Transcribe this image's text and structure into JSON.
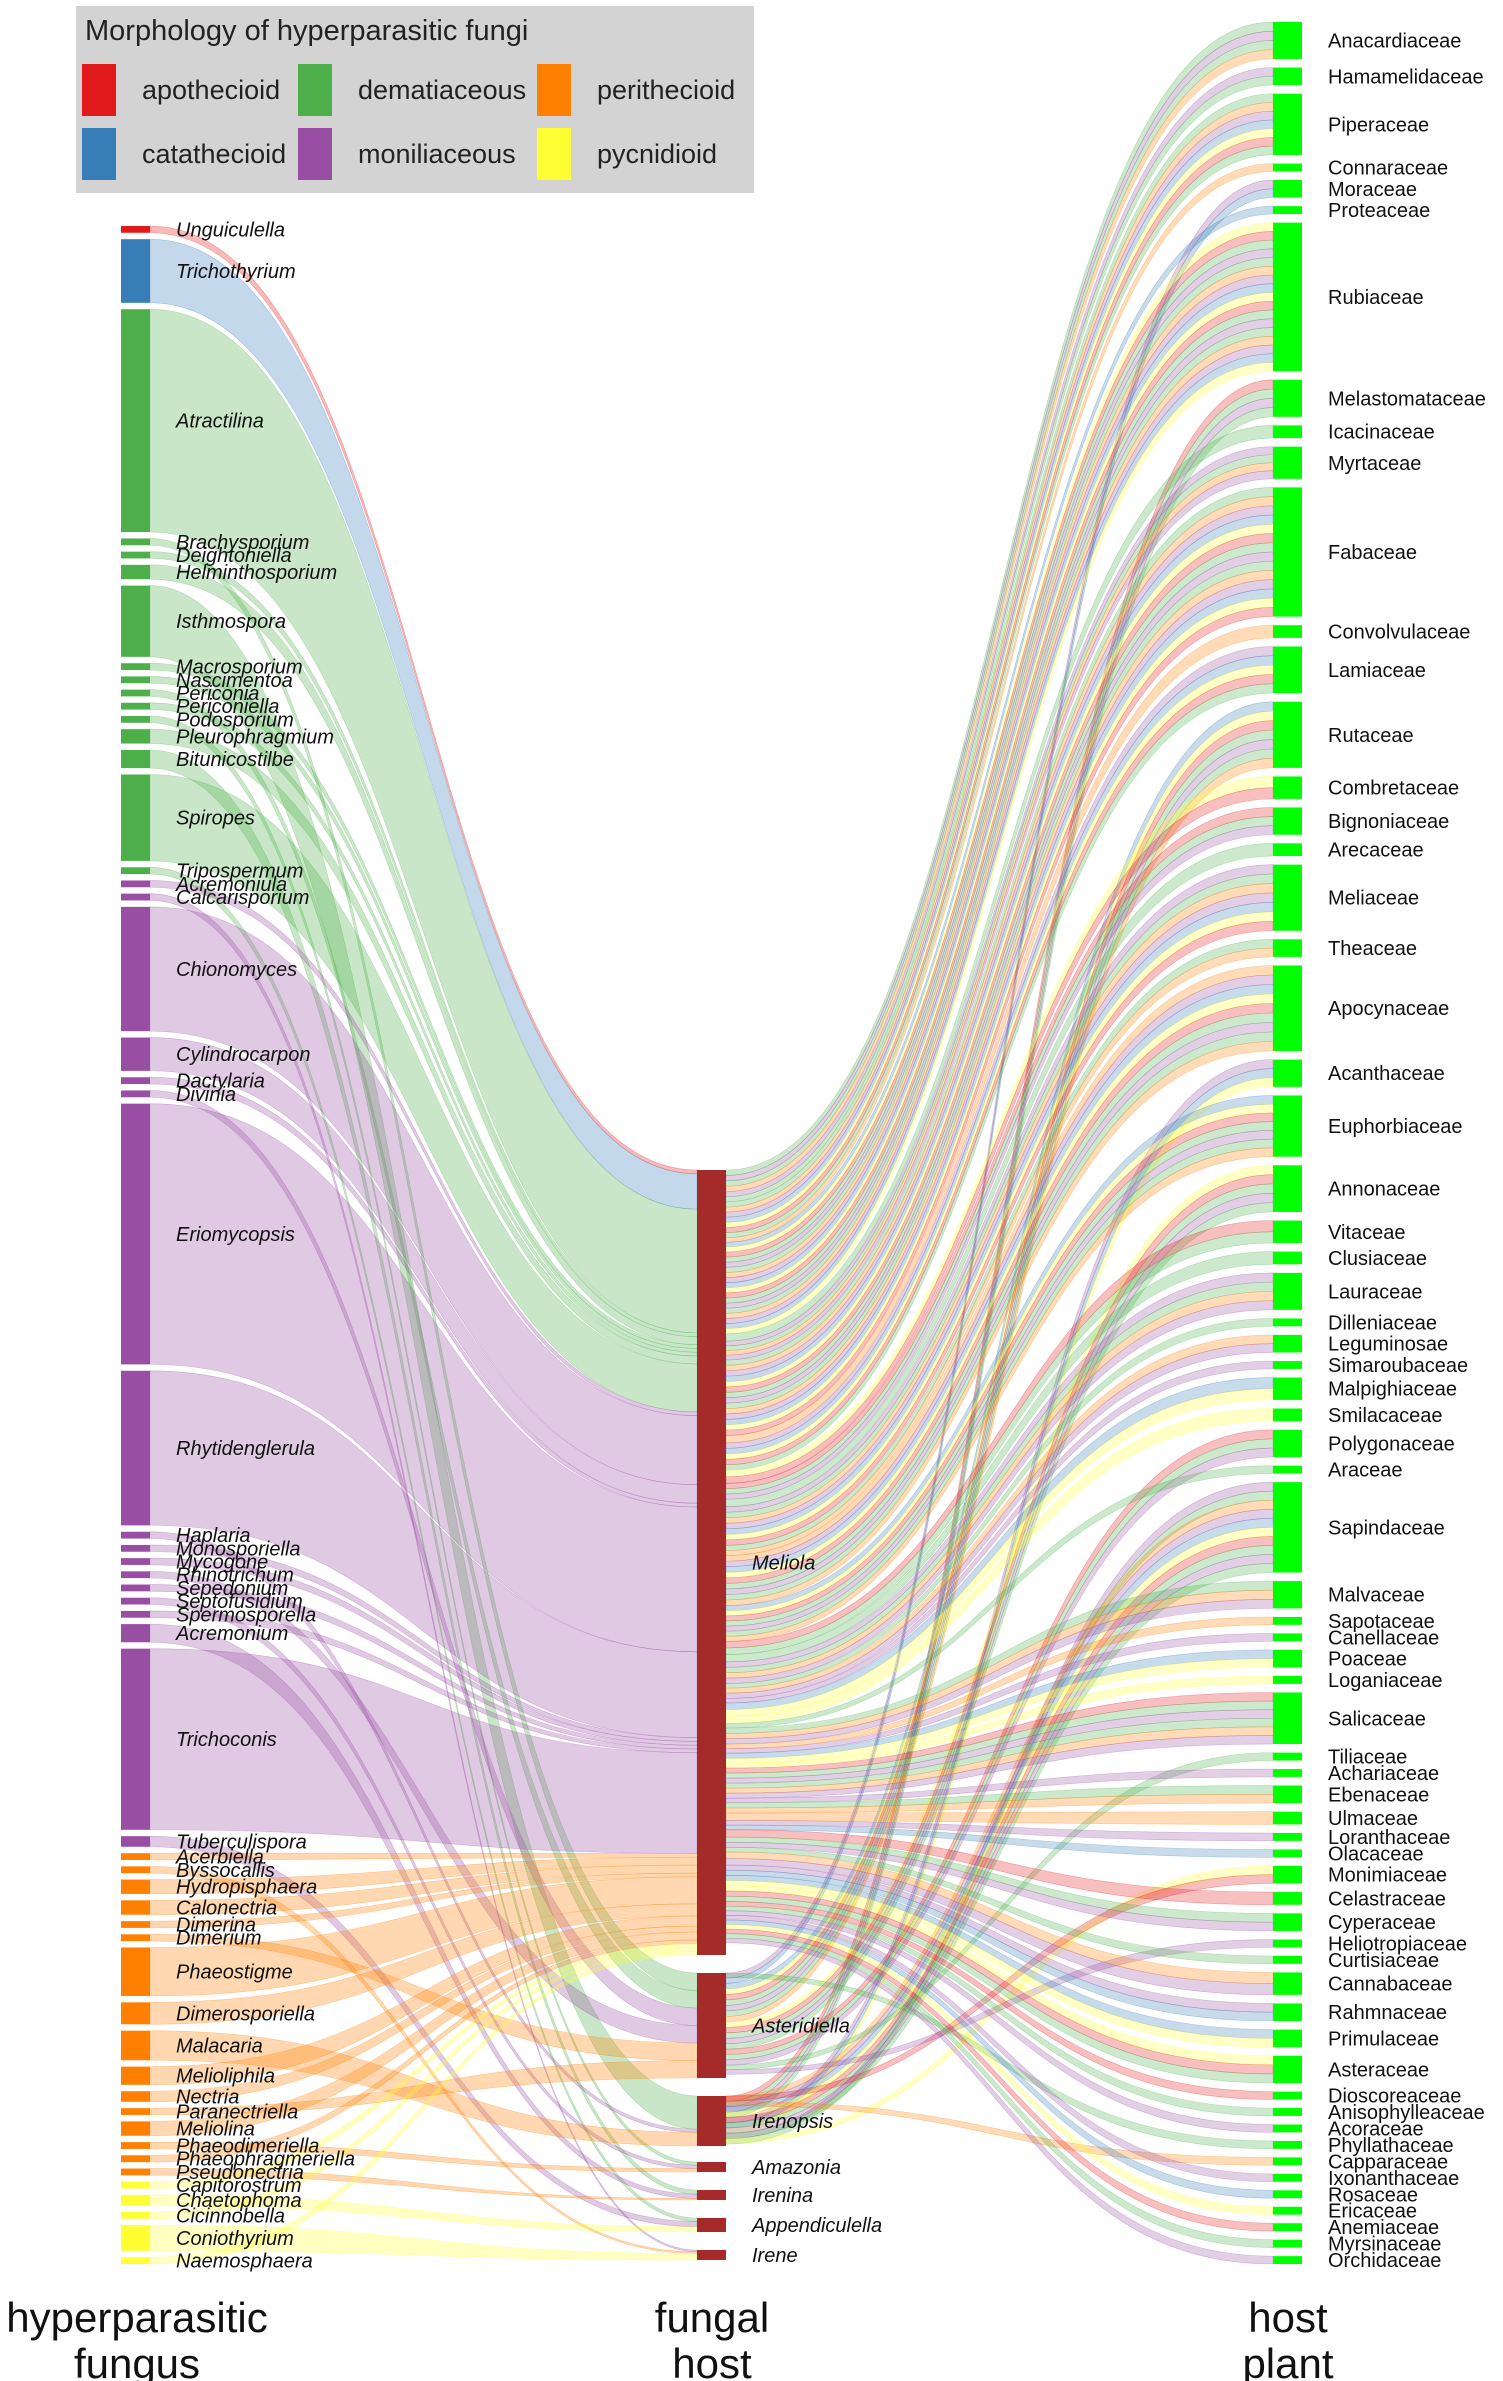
{
  "legend": {
    "title": "Morphology of hyperparasitic fungi",
    "items": [
      {
        "key": "apothecioid",
        "label": "apothecioid",
        "color": "#e31a1c"
      },
      {
        "key": "dematiaceous",
        "label": "dematiaceous",
        "color": "#4daf4a"
      },
      {
        "key": "perithecioid",
        "label": "perithecioid",
        "color": "#ff7f00"
      },
      {
        "key": "catathecioid",
        "label": "catathecioid",
        "color": "#377eb8"
      },
      {
        "key": "moniliaceous",
        "label": "moniliaceous",
        "color": "#984ea3"
      },
      {
        "key": "pycnidioid",
        "label": "pycnidioid",
        "color": "#ffff33"
      }
    ]
  },
  "columns": {
    "left": [
      "hyperparasitic",
      "fungus"
    ],
    "middle": [
      "fungal",
      "host"
    ],
    "right": [
      "host",
      "plant"
    ]
  },
  "colors": {
    "fungal_host_node": "#a52a2a",
    "host_plant_node": "#00ff00"
  },
  "hyperparasitic_fungi": [
    {
      "name": "Unguiculella",
      "morph": "apothecioid",
      "weight": 1
    },
    {
      "name": "Trichothyrium",
      "morph": "catathecioid",
      "weight": 16
    },
    {
      "name": "Atractilina",
      "morph": "dematiaceous",
      "weight": 58
    },
    {
      "name": "Brachysporium",
      "morph": "dematiaceous",
      "weight": 1
    },
    {
      "name": "Deightoniella",
      "morph": "dematiaceous",
      "weight": 1
    },
    {
      "name": "Helminthosporium",
      "morph": "dematiaceous",
      "weight": 3
    },
    {
      "name": "Isthmospora",
      "morph": "dematiaceous",
      "weight": 18
    },
    {
      "name": "Macrosporium",
      "morph": "dematiaceous",
      "weight": 1
    },
    {
      "name": "Nascimentoa",
      "morph": "dematiaceous",
      "weight": 1
    },
    {
      "name": "Periconia",
      "morph": "dematiaceous",
      "weight": 1
    },
    {
      "name": "Periconiella",
      "morph": "dematiaceous",
      "weight": 1
    },
    {
      "name": "Podosporium",
      "morph": "dematiaceous",
      "weight": 1
    },
    {
      "name": "Pleurophragmium",
      "morph": "dematiaceous",
      "weight": 3
    },
    {
      "name": "Bitunicostilbe",
      "morph": "dematiaceous",
      "weight": 4
    },
    {
      "name": "Spiropes",
      "morph": "dematiaceous",
      "weight": 22
    },
    {
      "name": "Tripospermum",
      "morph": "dematiaceous",
      "weight": 1
    },
    {
      "name": "Acremoniula",
      "morph": "moniliaceous",
      "weight": 1
    },
    {
      "name": "Calcarisporium",
      "morph": "moniliaceous",
      "weight": 1
    },
    {
      "name": "Chionomyces",
      "morph": "moniliaceous",
      "weight": 32
    },
    {
      "name": "Cylindrocarpon",
      "morph": "moniliaceous",
      "weight": 8
    },
    {
      "name": "Dactylaria",
      "morph": "moniliaceous",
      "weight": 1
    },
    {
      "name": "Divinia",
      "morph": "moniliaceous",
      "weight": 1
    },
    {
      "name": "Eriomycopsis",
      "morph": "moniliaceous",
      "weight": 68
    },
    {
      "name": "Rhytidenglerula",
      "morph": "moniliaceous",
      "weight": 40
    },
    {
      "name": "Haplaria",
      "morph": "moniliaceous",
      "weight": 1
    },
    {
      "name": "Monosporiella",
      "morph": "moniliaceous",
      "weight": 1
    },
    {
      "name": "Mycogone",
      "morph": "moniliaceous",
      "weight": 1
    },
    {
      "name": "Rhinotrichum",
      "morph": "moniliaceous",
      "weight": 1
    },
    {
      "name": "Sepedonium",
      "morph": "moniliaceous",
      "weight": 1
    },
    {
      "name": "Septofusidium",
      "morph": "moniliaceous",
      "weight": 1
    },
    {
      "name": "Spermosporella",
      "morph": "moniliaceous",
      "weight": 1
    },
    {
      "name": "Acremonium",
      "morph": "moniliaceous",
      "weight": 4
    },
    {
      "name": "Trichoconis",
      "morph": "moniliaceous",
      "weight": 47
    },
    {
      "name": "Tuberculispora",
      "morph": "moniliaceous",
      "weight": 2
    },
    {
      "name": "Acerbiella",
      "morph": "perithecioid",
      "weight": 1
    },
    {
      "name": "Byssocallis",
      "morph": "perithecioid",
      "weight": 1
    },
    {
      "name": "Hydropisphaera",
      "morph": "perithecioid",
      "weight": 3
    },
    {
      "name": "Calonectria",
      "morph": "perithecioid",
      "weight": 3
    },
    {
      "name": "Dimerina",
      "morph": "perithecioid",
      "weight": 1
    },
    {
      "name": "Dimerium",
      "morph": "perithecioid",
      "weight": 1
    },
    {
      "name": "Phaeostigme",
      "morph": "perithecioid",
      "weight": 12
    },
    {
      "name": "Dimerosporiella",
      "morph": "perithecioid",
      "weight": 5
    },
    {
      "name": "Malacaria",
      "morph": "perithecioid",
      "weight": 7
    },
    {
      "name": "Melioliphila",
      "morph": "perithecioid",
      "weight": 4
    },
    {
      "name": "Nectria",
      "morph": "perithecioid",
      "weight": 2
    },
    {
      "name": "Paranectriella",
      "morph": "perithecioid",
      "weight": 1
    },
    {
      "name": "Meliolina",
      "morph": "perithecioid",
      "weight": 3
    },
    {
      "name": "Phaeodimeriella",
      "morph": "perithecioid",
      "weight": 1
    },
    {
      "name": "Phaeophragmeriella",
      "morph": "perithecioid",
      "weight": 1
    },
    {
      "name": "Pseudonectria",
      "morph": "perithecioid",
      "weight": 1
    },
    {
      "name": "Capitorostrum",
      "morph": "pycnidioid",
      "weight": 1
    },
    {
      "name": "Chaetophoma",
      "morph": "pycnidioid",
      "weight": 2
    },
    {
      "name": "Cicinnobella",
      "morph": "pycnidioid",
      "weight": 1
    },
    {
      "name": "Coniothyrium",
      "morph": "pycnidioid",
      "weight": 6
    },
    {
      "name": "Naemosphaera",
      "morph": "pycnidioid",
      "weight": 1
    }
  ],
  "fungal_hosts": [
    {
      "name": "Meliola",
      "weight": 200
    },
    {
      "name": "Asteridiella",
      "weight": 27
    },
    {
      "name": "Irenopsis",
      "weight": 13
    },
    {
      "name": "Amazonia",
      "weight": 2
    },
    {
      "name": "Irenina",
      "weight": 2
    },
    {
      "name": "Appendiculella",
      "weight": 3
    },
    {
      "name": "Irene",
      "weight": 2
    }
  ],
  "host_plants": [
    {
      "name": "Anacardiaceae",
      "weight": 7
    },
    {
      "name": "Hamamelidaceae",
      "weight": 3
    },
    {
      "name": "Piperaceae",
      "weight": 12
    },
    {
      "name": "Connaraceae",
      "weight": 1
    },
    {
      "name": "Moraceae",
      "weight": 3
    },
    {
      "name": "Proteaceae",
      "weight": 1
    },
    {
      "name": "Rubiaceae",
      "weight": 30
    },
    {
      "name": "Melastomataceae",
      "weight": 7
    },
    {
      "name": "Icacinaceae",
      "weight": 2
    },
    {
      "name": "Myrtaceae",
      "weight": 6
    },
    {
      "name": "Fabaceae",
      "weight": 26
    },
    {
      "name": "Convolvulaceae",
      "weight": 2
    },
    {
      "name": "Lamiaceae",
      "weight": 9
    },
    {
      "name": "Rutaceae",
      "weight": 13
    },
    {
      "name": "Combretaceae",
      "weight": 4
    },
    {
      "name": "Bignoniaceae",
      "weight": 5
    },
    {
      "name": "Arecaceae",
      "weight": 2
    },
    {
      "name": "Meliaceae",
      "weight": 13
    },
    {
      "name": "Theaceae",
      "weight": 3
    },
    {
      "name": "Apocynaceae",
      "weight": 17
    },
    {
      "name": "Acanthaceae",
      "weight": 5
    },
    {
      "name": "Euphorbiaceae",
      "weight": 12
    },
    {
      "name": "Annonaceae",
      "weight": 9
    },
    {
      "name": "Vitaceae",
      "weight": 4
    },
    {
      "name": "Clusiaceae",
      "weight": 2
    },
    {
      "name": "Lauraceae",
      "weight": 7
    },
    {
      "name": "Dilleniaceae",
      "weight": 1
    },
    {
      "name": "Leguminosae",
      "weight": 3
    },
    {
      "name": "Simaroubaceae",
      "weight": 1
    },
    {
      "name": "Malpighiaceae",
      "weight": 4
    },
    {
      "name": "Smilacaceae",
      "weight": 2
    },
    {
      "name": "Polygonaceae",
      "weight": 5
    },
    {
      "name": "Araceae",
      "weight": 1
    },
    {
      "name": "Sapindaceae",
      "weight": 18
    },
    {
      "name": "Malvaceae",
      "weight": 5
    },
    {
      "name": "Sapotaceae",
      "weight": 1
    },
    {
      "name": "Canellaceae",
      "weight": 1
    },
    {
      "name": "Poaceae",
      "weight": 3
    },
    {
      "name": "Loganiaceae",
      "weight": 1
    },
    {
      "name": "Salicaceae",
      "weight": 10
    },
    {
      "name": "Tiliaceae",
      "weight": 1
    },
    {
      "name": "Achariaceae",
      "weight": 1
    },
    {
      "name": "Ebenaceae",
      "weight": 3
    },
    {
      "name": "Ulmaceae",
      "weight": 2
    },
    {
      "name": "Loranthaceae",
      "weight": 1
    },
    {
      "name": "Olacaceae",
      "weight": 1
    },
    {
      "name": "Monimiaceae",
      "weight": 3
    },
    {
      "name": "Celastraceae",
      "weight": 2
    },
    {
      "name": "Cyperaceae",
      "weight": 3
    },
    {
      "name": "Heliotropiaceae",
      "weight": 1
    },
    {
      "name": "Curtisiaceae",
      "weight": 1
    },
    {
      "name": "Cannabaceae",
      "weight": 4
    },
    {
      "name": "Rahmnaceae",
      "weight": 3
    },
    {
      "name": "Primulaceae",
      "weight": 3
    },
    {
      "name": "Asteraceae",
      "weight": 5
    },
    {
      "name": "Dioscoreaceae",
      "weight": 1
    },
    {
      "name": "Anisophylleaceae",
      "weight": 1
    },
    {
      "name": "Acoraceae",
      "weight": 1
    },
    {
      "name": "Phyllathaceae",
      "weight": 1
    },
    {
      "name": "Capparaceae",
      "weight": 1
    },
    {
      "name": "Ixonanthaceae",
      "weight": 1
    },
    {
      "name": "Rosaceae",
      "weight": 1
    },
    {
      "name": "Ericaceae",
      "weight": 1
    },
    {
      "name": "Anemiaceae",
      "weight": 1
    },
    {
      "name": "Myrsinaceae",
      "weight": 1
    },
    {
      "name": "Orchidaceae",
      "weight": 1
    }
  ]
}
